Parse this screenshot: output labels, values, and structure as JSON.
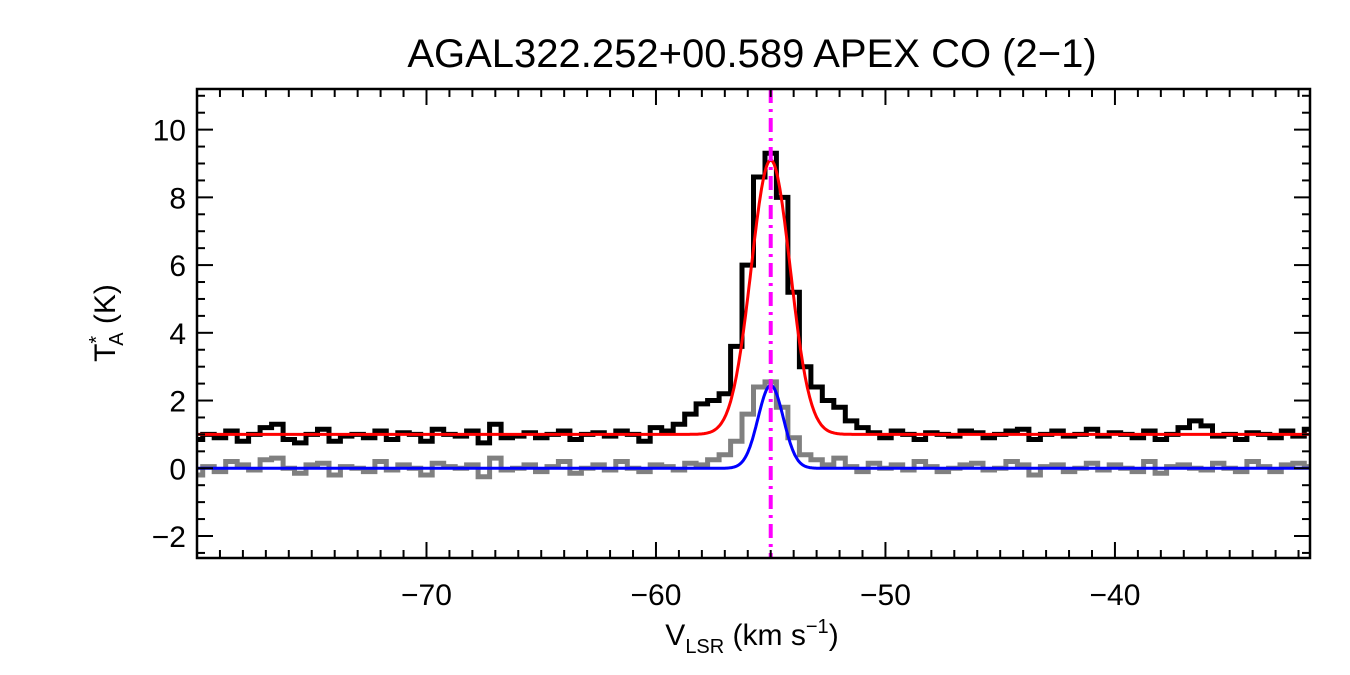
{
  "chart_data": {
    "type": "line",
    "title": "AGAL322.252+00.589  APEX CO (2−1)",
    "xlabel": {
      "main": "V",
      "sub": "LSR",
      "rest": " (km s",
      "sup": "−1",
      "end": ")"
    },
    "ylabel": {
      "main": "T",
      "sup": "*",
      "sub": "A",
      "rest": " (K)"
    },
    "xlim": [
      -80.0,
      -31.5
    ],
    "ylim": [
      -2.65,
      11.2
    ],
    "xticks": [
      -70,
      -60,
      -50,
      -40
    ],
    "xtick_labels": [
      "−70",
      "−60",
      "−50",
      "−40"
    ],
    "yticks": [
      -2,
      0,
      2,
      4,
      6,
      8,
      10
    ],
    "ytick_labels": [
      "−2",
      "0",
      "2",
      "4",
      "6",
      "8",
      "10"
    ],
    "grid": false,
    "vline": {
      "x": -55.0,
      "style": "dash-dot",
      "color": "#ff00ff"
    },
    "series": [
      {
        "kind": "histogram",
        "color": "#808080",
        "x": [
          -80.0,
          -79.5,
          -79.0,
          -78.5,
          -78.0,
          -77.5,
          -77.0,
          -76.5,
          -76.0,
          -75.5,
          -75.0,
          -74.5,
          -74.0,
          -73.5,
          -73.0,
          -72.5,
          -72.0,
          -71.5,
          -71.0,
          -70.5,
          -70.0,
          -69.5,
          -69.0,
          -68.5,
          -68.0,
          -67.5,
          -67.0,
          -66.5,
          -66.0,
          -65.5,
          -65.0,
          -64.5,
          -64.0,
          -63.5,
          -63.0,
          -62.5,
          -62.0,
          -61.5,
          -61.0,
          -60.5,
          -60.0,
          -59.5,
          -59.0,
          -58.5,
          -58.0,
          -57.5,
          -57.0,
          -56.5,
          -56.0,
          -55.5,
          -55.0,
          -54.5,
          -54.0,
          -53.5,
          -53.0,
          -52.5,
          -52.0,
          -51.5,
          -51.0,
          -50.5,
          -50.0,
          -49.5,
          -49.0,
          -48.5,
          -48.0,
          -47.5,
          -47.0,
          -46.5,
          -46.0,
          -45.5,
          -45.0,
          -44.5,
          -44.0,
          -43.5,
          -43.0,
          -42.5,
          -42.0,
          -41.5,
          -41.0,
          -40.5,
          -40.0,
          -39.5,
          -39.0,
          -38.5,
          -38.0,
          -37.5,
          -37.0,
          -36.5,
          -36.0,
          -35.5,
          -35.0,
          -34.5,
          -34.0,
          -33.5,
          -33.0,
          -32.5,
          -32.0,
          -31.5
        ],
        "y": [
          -0.2,
          0.05,
          -0.1,
          0.2,
          0.1,
          -0.05,
          0.25,
          0.3,
          0.0,
          -0.15,
          0.1,
          0.15,
          -0.2,
          0.05,
          0.0,
          -0.1,
          0.2,
          -0.05,
          0.1,
          0.0,
          -0.2,
          0.15,
          0.05,
          0.0,
          0.1,
          -0.25,
          0.3,
          -0.05,
          0.0,
          0.1,
          -0.1,
          0.05,
          0.2,
          -0.15,
          0.0,
          0.1,
          -0.05,
          0.2,
          0.0,
          -0.1,
          0.1,
          0.05,
          -0.05,
          0.15,
          0.1,
          0.25,
          0.4,
          0.8,
          1.6,
          2.4,
          2.55,
          1.8,
          0.9,
          0.4,
          0.25,
          0.1,
          0.3,
          0.05,
          -0.1,
          0.15,
          0.0,
          0.1,
          -0.05,
          0.2,
          0.05,
          -0.1,
          0.0,
          0.1,
          0.15,
          -0.05,
          0.0,
          0.2,
          0.1,
          -0.2,
          0.05,
          0.1,
          -0.1,
          0.0,
          0.15,
          -0.05,
          0.1,
          0.0,
          -0.1,
          0.2,
          -0.15,
          0.05,
          0.1,
          0.0,
          -0.05,
          0.15,
          0.0,
          -0.1,
          0.2,
          0.05,
          -0.1,
          0.1,
          0.15,
          0.05
        ]
      },
      {
        "kind": "histogram",
        "color": "#000000",
        "x": [
          -80.0,
          -79.5,
          -79.0,
          -78.5,
          -78.0,
          -77.5,
          -77.0,
          -76.5,
          -76.0,
          -75.5,
          -75.0,
          -74.5,
          -74.0,
          -73.5,
          -73.0,
          -72.5,
          -72.0,
          -71.5,
          -71.0,
          -70.5,
          -70.0,
          -69.5,
          -69.0,
          -68.5,
          -68.0,
          -67.5,
          -67.0,
          -66.5,
          -66.0,
          -65.5,
          -65.0,
          -64.5,
          -64.0,
          -63.5,
          -63.0,
          -62.5,
          -62.0,
          -61.5,
          -61.0,
          -60.5,
          -60.0,
          -59.5,
          -59.0,
          -58.5,
          -58.0,
          -57.5,
          -57.0,
          -56.5,
          -56.0,
          -55.5,
          -55.0,
          -54.5,
          -54.0,
          -53.5,
          -53.0,
          -52.5,
          -52.0,
          -51.5,
          -51.0,
          -50.5,
          -50.0,
          -49.5,
          -49.0,
          -48.5,
          -48.0,
          -47.5,
          -47.0,
          -46.5,
          -46.0,
          -45.5,
          -45.0,
          -44.5,
          -44.0,
          -43.5,
          -43.0,
          -42.5,
          -42.0,
          -41.5,
          -41.0,
          -40.5,
          -40.0,
          -39.5,
          -39.0,
          -38.5,
          -38.0,
          -37.5,
          -37.0,
          -36.5,
          -36.0,
          -35.5,
          -35.0,
          -34.5,
          -34.0,
          -33.5,
          -33.0,
          -32.5,
          -32.0,
          -31.5
        ],
        "y": [
          0.85,
          1.0,
          0.9,
          1.1,
          0.8,
          1.0,
          1.2,
          1.3,
          0.85,
          0.75,
          1.0,
          1.15,
          0.8,
          0.95,
          1.0,
          0.9,
          1.1,
          0.85,
          1.05,
          1.0,
          0.8,
          1.15,
          1.0,
          0.95,
          1.1,
          0.75,
          1.3,
          0.9,
          0.95,
          1.05,
          0.9,
          1.0,
          1.1,
          0.85,
          1.0,
          1.05,
          0.95,
          1.1,
          1.0,
          0.8,
          1.2,
          1.1,
          1.3,
          1.6,
          1.9,
          2.0,
          2.2,
          3.6,
          6.0,
          8.6,
          9.3,
          8.0,
          5.2,
          3.0,
          2.4,
          2.0,
          1.8,
          1.4,
          1.2,
          1.05,
          0.9,
          1.1,
          1.0,
          0.85,
          1.05,
          1.0,
          0.95,
          1.1,
          1.05,
          0.9,
          1.0,
          1.1,
          1.15,
          0.85,
          1.0,
          1.1,
          0.95,
          1.0,
          1.15,
          0.95,
          1.05,
          1.0,
          0.9,
          1.1,
          0.85,
          1.0,
          1.2,
          1.4,
          1.25,
          0.95,
          1.0,
          0.85,
          1.05,
          1.0,
          0.9,
          1.1,
          0.95,
          1.15
        ]
      },
      {
        "kind": "gaussian_fit",
        "color": "#ff0000",
        "baseline": 1.0,
        "amplitude": 8.1,
        "center": -55.0,
        "sigma": 0.85
      },
      {
        "kind": "gaussian_fit",
        "color": "#0000ff",
        "baseline": 0.0,
        "amplitude": 2.45,
        "center": -55.0,
        "sigma": 0.55
      }
    ]
  }
}
